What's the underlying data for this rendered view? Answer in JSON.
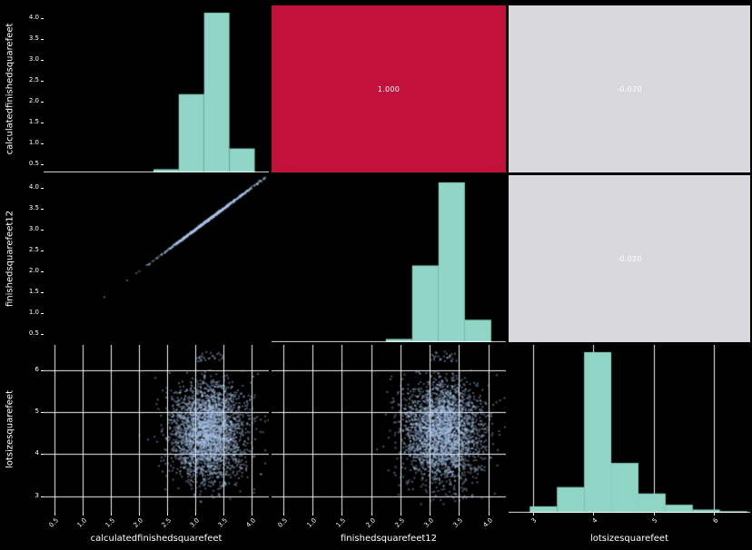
{
  "variables": [
    "calculatedfinishedsquarefeet",
    "finishedsquarefeet12",
    "lotsizesquarefeet"
  ],
  "style": {
    "background": "#000000",
    "hist_color": "#90d5c5",
    "scatter_color": "#a9c4e6",
    "grid_color": "#ffffff",
    "text_color": "#ffffff",
    "corr_strong_bg": "#c2113b",
    "corr_strong_text": "#ffffff",
    "corr_weak_bg": "#d9d9dd",
    "corr_weak_text": "#fdfdfd"
  },
  "axes": {
    "sqft": {
      "tick_labels": [
        "0.5",
        "1.0",
        "1.5",
        "2.0",
        "2.5",
        "3.0",
        "3.5",
        "4.0"
      ],
      "tick_values": [
        0.5,
        1.0,
        1.5,
        2.0,
        2.5,
        3.0,
        3.5,
        4.0
      ],
      "lim": [
        0.3,
        4.3
      ]
    },
    "lot": {
      "tick_labels": [
        "3",
        "4",
        "5",
        "6"
      ],
      "tick_values": [
        3,
        4,
        5,
        6
      ],
      "lim": [
        2.6,
        6.6
      ]
    }
  },
  "chart_data": [
    {
      "row": 0,
      "col": 0,
      "type": "histogram",
      "variable": "calculatedfinishedsquarefeet",
      "axis": "sqft",
      "bin_edges": [
        2.25,
        2.7,
        3.15,
        3.6,
        4.05
      ],
      "rel_heights": [
        0.02,
        0.49,
        1.0,
        0.15
      ]
    },
    {
      "row": 0,
      "col": 1,
      "type": "correlation",
      "x": "finishedsquarefeet12",
      "y": "calculatedfinishedsquarefeet",
      "value": "1.000",
      "level": "high"
    },
    {
      "row": 0,
      "col": 2,
      "type": "correlation",
      "x": "lotsizesquarefeet",
      "y": "calculatedfinishedsquarefeet",
      "value": "-0.020",
      "level": "low"
    },
    {
      "row": 1,
      "col": 0,
      "type": "scatter",
      "pattern": "diagonal",
      "x_axis": "sqft",
      "y_axis": "sqft",
      "n": 700,
      "center": 3.25,
      "spread": 0.42,
      "range": [
        2.02,
        4.28
      ],
      "noise": 0.012,
      "tail_points": [
        1.38,
        1.78,
        1.95,
        2.0
      ],
      "seed": 11
    },
    {
      "row": 1,
      "col": 1,
      "type": "histogram",
      "variable": "finishedsquarefeet12",
      "axis": "sqft",
      "bin_edges": [
        2.25,
        2.7,
        3.15,
        3.6,
        4.05
      ],
      "rel_heights": [
        0.02,
        0.48,
        1.0,
        0.14
      ]
    },
    {
      "row": 1,
      "col": 2,
      "type": "correlation",
      "x": "lotsizesquarefeet",
      "y": "finishedsquarefeet12",
      "value": "-0.020",
      "level": "low"
    },
    {
      "row": 2,
      "col": 0,
      "type": "scatter",
      "pattern": "blob",
      "x_axis": "sqft",
      "y_axis": "lot",
      "grid": true,
      "n": 3000,
      "x_mean": 3.22,
      "x_std": 0.33,
      "y_mean": 4.55,
      "y_std": 0.6,
      "x_clip": [
        2.0,
        4.35
      ],
      "y_clip": [
        2.8,
        6.0
      ],
      "top_cluster": {
        "n": 28,
        "x_range": [
          3.02,
          3.5
        ],
        "y_range": [
          6.2,
          6.45
        ]
      },
      "seed": 21
    },
    {
      "row": 2,
      "col": 1,
      "type": "scatter",
      "pattern": "blob",
      "x_axis": "sqft",
      "y_axis": "lot",
      "grid": true,
      "n": 3000,
      "x_mean": 3.22,
      "x_std": 0.33,
      "y_mean": 4.55,
      "y_std": 0.6,
      "x_clip": [
        2.0,
        4.35
      ],
      "y_clip": [
        2.8,
        6.0
      ],
      "top_cluster": {
        "n": 28,
        "x_range": [
          3.02,
          3.5
        ],
        "y_range": [
          6.2,
          6.45
        ]
      },
      "seed": 33
    },
    {
      "row": 2,
      "col": 2,
      "type": "histogram",
      "variable": "lotsizesquarefeet",
      "axis": "lot",
      "grid": true,
      "bin_edges": [
        2.95,
        3.4,
        3.85,
        4.3,
        4.75,
        5.2,
        5.65,
        6.1,
        6.55
      ],
      "rel_heights": [
        0.04,
        0.16,
        1.0,
        0.31,
        0.12,
        0.05,
        0.02,
        0.01
      ]
    }
  ]
}
